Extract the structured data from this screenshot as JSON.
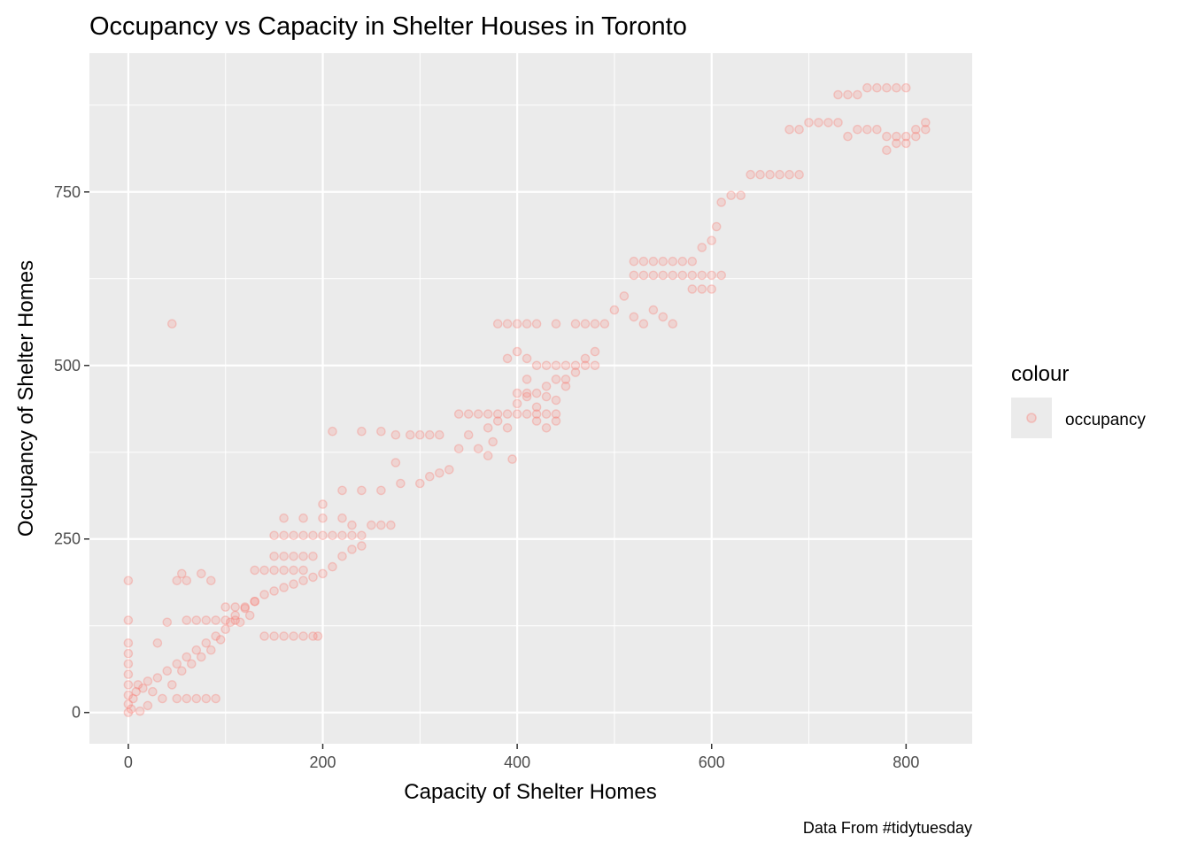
{
  "chart_data": {
    "type": "scatter",
    "title": "Occupancy vs Capacity in Shelter Houses in Toronto",
    "xlabel": "Capacity of Shelter Homes",
    "ylabel": "Occupancy of Shelter Homes",
    "caption": "Data From #tidytuesday",
    "xlim": [
      -40,
      868
    ],
    "ylim": [
      -45,
      950
    ],
    "x_ticks": [
      0,
      200,
      400,
      600,
      800
    ],
    "y_ticks": [
      0,
      250,
      500,
      750
    ],
    "x_tick_labels": [
      "0",
      "200",
      "400",
      "600",
      "800"
    ],
    "y_tick_labels": [
      "0",
      "250",
      "500",
      "750"
    ],
    "grid": true,
    "legend": {
      "title": "colour",
      "position": "right",
      "entries": [
        "occupancy"
      ]
    },
    "colors": {
      "point": "#F8766D",
      "panel": "#EBEBEB",
      "grid": "#FFFFFF"
    },
    "point_alpha": 0.2,
    "series": [
      {
        "name": "occupancy",
        "points": [
          [
            0,
            0
          ],
          [
            0,
            12
          ],
          [
            0,
            25
          ],
          [
            0,
            40
          ],
          [
            0,
            55
          ],
          [
            0,
            70
          ],
          [
            0,
            85
          ],
          [
            0,
            100
          ],
          [
            0,
            133
          ],
          [
            0,
            190
          ],
          [
            3,
            5
          ],
          [
            5,
            20
          ],
          [
            8,
            30
          ],
          [
            10,
            40
          ],
          [
            12,
            2
          ],
          [
            15,
            35
          ],
          [
            20,
            10
          ],
          [
            20,
            45
          ],
          [
            25,
            30
          ],
          [
            30,
            50
          ],
          [
            35,
            20
          ],
          [
            40,
            60
          ],
          [
            45,
            40
          ],
          [
            50,
            70
          ],
          [
            55,
            60
          ],
          [
            60,
            80
          ],
          [
            65,
            70
          ],
          [
            70,
            90
          ],
          [
            75,
            80
          ],
          [
            80,
            100
          ],
          [
            85,
            90
          ],
          [
            90,
            110
          ],
          [
            95,
            105
          ],
          [
            100,
            120
          ],
          [
            105,
            130
          ],
          [
            110,
            140
          ],
          [
            115,
            130
          ],
          [
            120,
            150
          ],
          [
            125,
            140
          ],
          [
            130,
            160
          ],
          [
            30,
            100
          ],
          [
            40,
            130
          ],
          [
            45,
            560
          ],
          [
            50,
            190
          ],
          [
            55,
            200
          ],
          [
            60,
            190
          ],
          [
            75,
            200
          ],
          [
            85,
            190
          ],
          [
            50,
            20
          ],
          [
            60,
            20
          ],
          [
            70,
            20
          ],
          [
            80,
            20
          ],
          [
            90,
            20
          ],
          [
            60,
            133
          ],
          [
            70,
            133
          ],
          [
            80,
            133
          ],
          [
            90,
            133
          ],
          [
            100,
            133
          ],
          [
            110,
            133
          ],
          [
            100,
            152
          ],
          [
            110,
            152
          ],
          [
            120,
            152
          ],
          [
            130,
            160
          ],
          [
            140,
            170
          ],
          [
            150,
            175
          ],
          [
            160,
            180
          ],
          [
            170,
            185
          ],
          [
            180,
            190
          ],
          [
            190,
            195
          ],
          [
            200,
            200
          ],
          [
            210,
            210
          ],
          [
            220,
            225
          ],
          [
            230,
            235
          ],
          [
            240,
            240
          ],
          [
            140,
            110
          ],
          [
            150,
            110
          ],
          [
            160,
            110
          ],
          [
            170,
            110
          ],
          [
            180,
            110
          ],
          [
            190,
            110
          ],
          [
            195,
            110
          ],
          [
            150,
            255
          ],
          [
            160,
            255
          ],
          [
            170,
            255
          ],
          [
            180,
            255
          ],
          [
            190,
            255
          ],
          [
            200,
            255
          ],
          [
            210,
            255
          ],
          [
            220,
            255
          ],
          [
            230,
            255
          ],
          [
            240,
            255
          ],
          [
            130,
            205
          ],
          [
            140,
            205
          ],
          [
            150,
            205
          ],
          [
            160,
            205
          ],
          [
            170,
            205
          ],
          [
            180,
            205
          ],
          [
            150,
            225
          ],
          [
            160,
            225
          ],
          [
            170,
            225
          ],
          [
            180,
            225
          ],
          [
            190,
            225
          ],
          [
            160,
            280
          ],
          [
            180,
            280
          ],
          [
            200,
            280
          ],
          [
            220,
            280
          ],
          [
            210,
            405
          ],
          [
            240,
            405
          ],
          [
            260,
            405
          ],
          [
            275,
            400
          ],
          [
            290,
            400
          ],
          [
            300,
            400
          ],
          [
            310,
            400
          ],
          [
            320,
            400
          ],
          [
            200,
            300
          ],
          [
            220,
            320
          ],
          [
            240,
            320
          ],
          [
            260,
            320
          ],
          [
            280,
            330
          ],
          [
            300,
            330
          ],
          [
            310,
            340
          ],
          [
            320,
            345
          ],
          [
            330,
            350
          ],
          [
            230,
            270
          ],
          [
            250,
            270
          ],
          [
            260,
            270
          ],
          [
            270,
            270
          ],
          [
            275,
            360
          ],
          [
            340,
            380
          ],
          [
            350,
            400
          ],
          [
            360,
            380
          ],
          [
            370,
            370
          ],
          [
            375,
            390
          ],
          [
            340,
            430
          ],
          [
            350,
            430
          ],
          [
            360,
            430
          ],
          [
            370,
            430
          ],
          [
            380,
            430
          ],
          [
            390,
            430
          ],
          [
            400,
            430
          ],
          [
            410,
            430
          ],
          [
            420,
            430
          ],
          [
            430,
            430
          ],
          [
            440,
            430
          ],
          [
            380,
            560
          ],
          [
            390,
            560
          ],
          [
            400,
            560
          ],
          [
            410,
            560
          ],
          [
            420,
            560
          ],
          [
            440,
            560
          ],
          [
            460,
            560
          ],
          [
            470,
            560
          ],
          [
            480,
            560
          ],
          [
            490,
            560
          ],
          [
            390,
            510
          ],
          [
            400,
            520
          ],
          [
            410,
            510
          ],
          [
            420,
            500
          ],
          [
            430,
            500
          ],
          [
            440,
            500
          ],
          [
            450,
            500
          ],
          [
            460,
            500
          ],
          [
            470,
            500
          ],
          [
            480,
            500
          ],
          [
            400,
            460
          ],
          [
            410,
            455
          ],
          [
            420,
            460
          ],
          [
            430,
            470
          ],
          [
            440,
            480
          ],
          [
            450,
            470
          ],
          [
            460,
            490
          ],
          [
            470,
            510
          ],
          [
            480,
            520
          ],
          [
            370,
            410
          ],
          [
            380,
            420
          ],
          [
            390,
            410
          ],
          [
            400,
            445
          ],
          [
            410,
            460
          ],
          [
            420,
            440
          ],
          [
            430,
            455
          ],
          [
            440,
            450
          ],
          [
            450,
            480
          ],
          [
            395,
            365
          ],
          [
            410,
            480
          ],
          [
            420,
            420
          ],
          [
            430,
            410
          ],
          [
            440,
            420
          ],
          [
            500,
            580
          ],
          [
            510,
            600
          ],
          [
            520,
            630
          ],
          [
            530,
            630
          ],
          [
            540,
            630
          ],
          [
            550,
            630
          ],
          [
            560,
            630
          ],
          [
            570,
            630
          ],
          [
            580,
            630
          ],
          [
            590,
            630
          ],
          [
            600,
            630
          ],
          [
            610,
            630
          ],
          [
            520,
            650
          ],
          [
            530,
            650
          ],
          [
            540,
            650
          ],
          [
            550,
            650
          ],
          [
            560,
            650
          ],
          [
            570,
            650
          ],
          [
            580,
            650
          ],
          [
            520,
            570
          ],
          [
            530,
            560
          ],
          [
            540,
            580
          ],
          [
            550,
            570
          ],
          [
            560,
            560
          ],
          [
            580,
            610
          ],
          [
            590,
            610
          ],
          [
            600,
            610
          ],
          [
            590,
            670
          ],
          [
            600,
            680
          ],
          [
            605,
            700
          ],
          [
            610,
            735
          ],
          [
            620,
            745
          ],
          [
            630,
            745
          ],
          [
            640,
            775
          ],
          [
            650,
            775
          ],
          [
            660,
            775
          ],
          [
            670,
            775
          ],
          [
            680,
            775
          ],
          [
            690,
            775
          ],
          [
            680,
            840
          ],
          [
            690,
            840
          ],
          [
            700,
            850
          ],
          [
            710,
            850
          ],
          [
            720,
            850
          ],
          [
            730,
            850
          ],
          [
            730,
            890
          ],
          [
            740,
            890
          ],
          [
            750,
            890
          ],
          [
            760,
            900
          ],
          [
            770,
            900
          ],
          [
            780,
            900
          ],
          [
            790,
            900
          ],
          [
            800,
            900
          ],
          [
            740,
            830
          ],
          [
            750,
            840
          ],
          [
            760,
            840
          ],
          [
            770,
            840
          ],
          [
            780,
            830
          ],
          [
            790,
            830
          ],
          [
            800,
            830
          ],
          [
            810,
            840
          ],
          [
            820,
            840
          ],
          [
            780,
            810
          ],
          [
            790,
            820
          ],
          [
            800,
            820
          ],
          [
            810,
            830
          ],
          [
            820,
            850
          ]
        ]
      }
    ]
  }
}
